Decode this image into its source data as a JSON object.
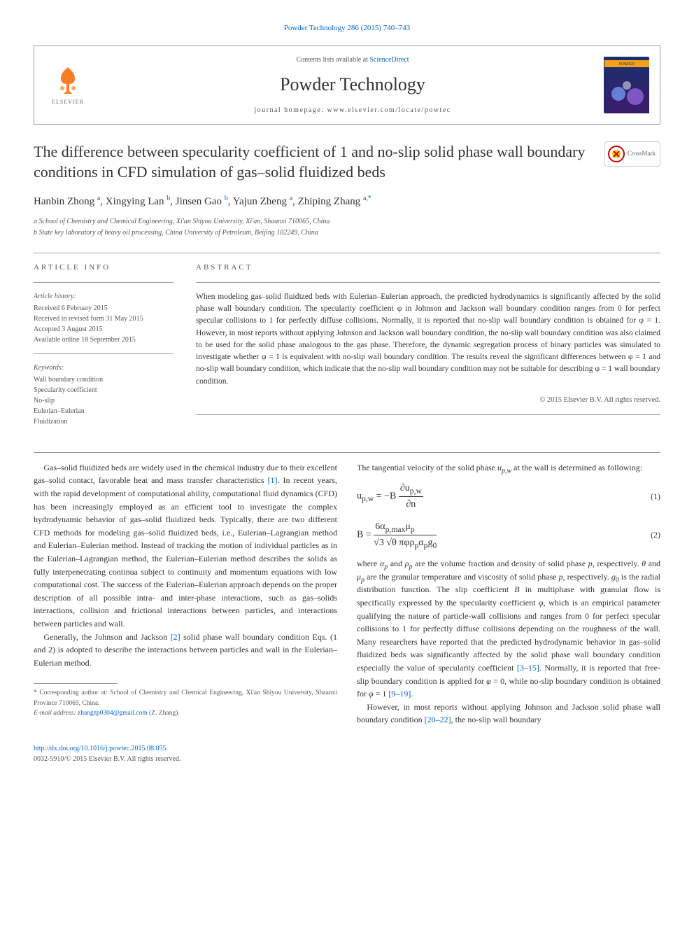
{
  "top_link": "Powder Technology 286 (2015) 740–743",
  "header": {
    "elsevier_label": "ELSEVIER",
    "contents_prefix": "Contents lists available at ",
    "contents_link": "ScienceDirect",
    "journal_name": "Powder Technology",
    "homepage_line": "journal homepage: www.elsevier.com/locate/powtec",
    "cover_title": "POWDER TECHNOLOGY",
    "cover_colors": {
      "bg_top": "#1a2f6b",
      "bg_bottom": "#3b1d6b",
      "title_band": "#f6a01a"
    }
  },
  "crossmark_label": "CrossMark",
  "title": "The difference between specularity coefficient of 1 and no-slip solid phase wall boundary conditions in CFD simulation of gas–solid fluidized beds",
  "authors_html": "Hanbin Zhong <sup>a</sup>, Xingying Lan <sup>b</sup>, Jinsen Gao <sup>b</sup>, Yajun Zheng <sup>a</sup>, Zhiping Zhang <sup>a,*</sup>",
  "affiliations": [
    "a School of Chemistry and Chemical Engineering, Xi'an Shiyou University, Xi'an, Shaanxi 710065, China",
    "b State key laboratory of heavy oil processing, China University of Petroleum, Beijing 102249, China"
  ],
  "article_info": {
    "heading": "ARTICLE INFO",
    "history_label": "Article history:",
    "history": [
      "Received 6 February 2015",
      "Received in revised form 31 May 2015",
      "Accepted 3 August 2015",
      "Available online 18 September 2015"
    ],
    "keywords_label": "Keywords:",
    "keywords": [
      "Wall boundary condition",
      "Specularity coefficient",
      "No-slip",
      "Eulerian–Eulerian",
      "Fluidization"
    ]
  },
  "abstract": {
    "heading": "ABSTRACT",
    "text": "When modeling gas–solid fluidized beds with Eulerian–Eulerian approach, the predicted hydrodynamics is significantly affected by the solid phase wall boundary condition. The specularity coefficient φ in Johnson and Jackson wall boundary condition ranges from 0 for perfect specular collisions to 1 for perfectly diffuse collisions. Normally, it is reported that no-slip wall boundary condition is obtained for φ = 1. However, in most reports without applying Johnson and Jackson wall boundary condition, the no-slip wall boundary condition was also claimed to be used for the solid phase analogous to the gas phase. Therefore, the dynamic segregation process of binary particles was simulated to investigate whether φ = 1 is equivalent with no-slip wall boundary condition. The results reveal the significant differences between φ = 1 and no-slip wall boundary condition, which indicate that the no-slip wall boundary condition may not be suitable for describing φ = 1 wall boundary condition.",
    "copyright": "© 2015 Elsevier B.V. All rights reserved."
  },
  "body": {
    "p1": "Gas–solid fluidized beds are widely used in the chemical industry due to their excellent gas–solid contact, favorable heat and mass transfer characteristics [1]. In recent years, with the rapid development of computational ability, computational fluid dynamics (CFD) has been increasingly employed as an efficient tool to investigate the complex hydrodynamic behavior of gas–solid fluidized beds. Typically, there are two different CFD methods for modeling gas–solid fluidized beds, i.e., Eulerian–Lagrangian method and Eulerian–Eulerian method. Instead of tracking the motion of individual particles as in the Eulerian–Lagrangian method, the Eulerian–Eulerian method describes the solids as fully interpenetrating continua subject to continuity and momentum equations with low computational cost. The success of the Eulerian–Eulerian approach depends on the proper description of all possible intra- and inter-phase interactions, such as gas–solids interactions, collision and frictional interactions between particles, and interactions between particles and wall.",
    "p2": "Generally, the Johnson and Jackson [2] solid phase wall boundary condition Eqs. (1 and 2) is adopted to describe the interactions between particles and wall in the Eulerian–Eulerian method. The tangential velocity of the solid phase u_{p,w} at the wall is determined as following:",
    "eq1_label": "(1)",
    "eq2_label": "(2)",
    "p3_pre": "where α",
    "p3": " and ρ_p are the volume fraction and density of solid phase p, respectively. θ and μ_p are the granular temperature and viscosity of solid phase p, respectively. g_0 is the radial distribution function. The slip coefficient B in multiphase with granular flow is specifically expressed by the specularity coefficient φ, which is an empirical parameter qualifying the nature of particle-wall collisions and ranges from 0 for perfect specular collisions to 1 for perfectly diffuse collisions depending on the roughness of the wall. Many researchers have reported that the predicted hydrodynamic behavior in gas–solid fluidized beds was significantly affected by the solid phase wall boundary condition especially the value of specularity coefficient [3–15]. Normally, it is reported that free-slip boundary condition is applied for φ = 0, while no-slip boundary condition is obtained for φ = 1 [9–19].",
    "p4": "However, in most reports without applying Johnson and Jackson solid phase wall boundary condition [20–22], the no-slip wall boundary"
  },
  "footnotes": {
    "corr": "* Corresponding author at: School of Chemistry and Chemical Engineering, Xi'an Shiyou University, Shaanxi Province 710065, China.",
    "email_label": "E-mail address: ",
    "email": "zhangzp0304@gmail.com",
    "email_suffix": " (Z. Zhang)."
  },
  "footer": {
    "doi": "http://dx.doi.org/10.1016/j.powtec.2015.08.055",
    "issn_line": "0032-5910/© 2015 Elsevier B.V. All rights reserved."
  },
  "colors": {
    "link": "#0066cc",
    "text": "#333333",
    "muted": "#555555",
    "rule": "#999999",
    "elsevier_orange": "#ff6600"
  }
}
